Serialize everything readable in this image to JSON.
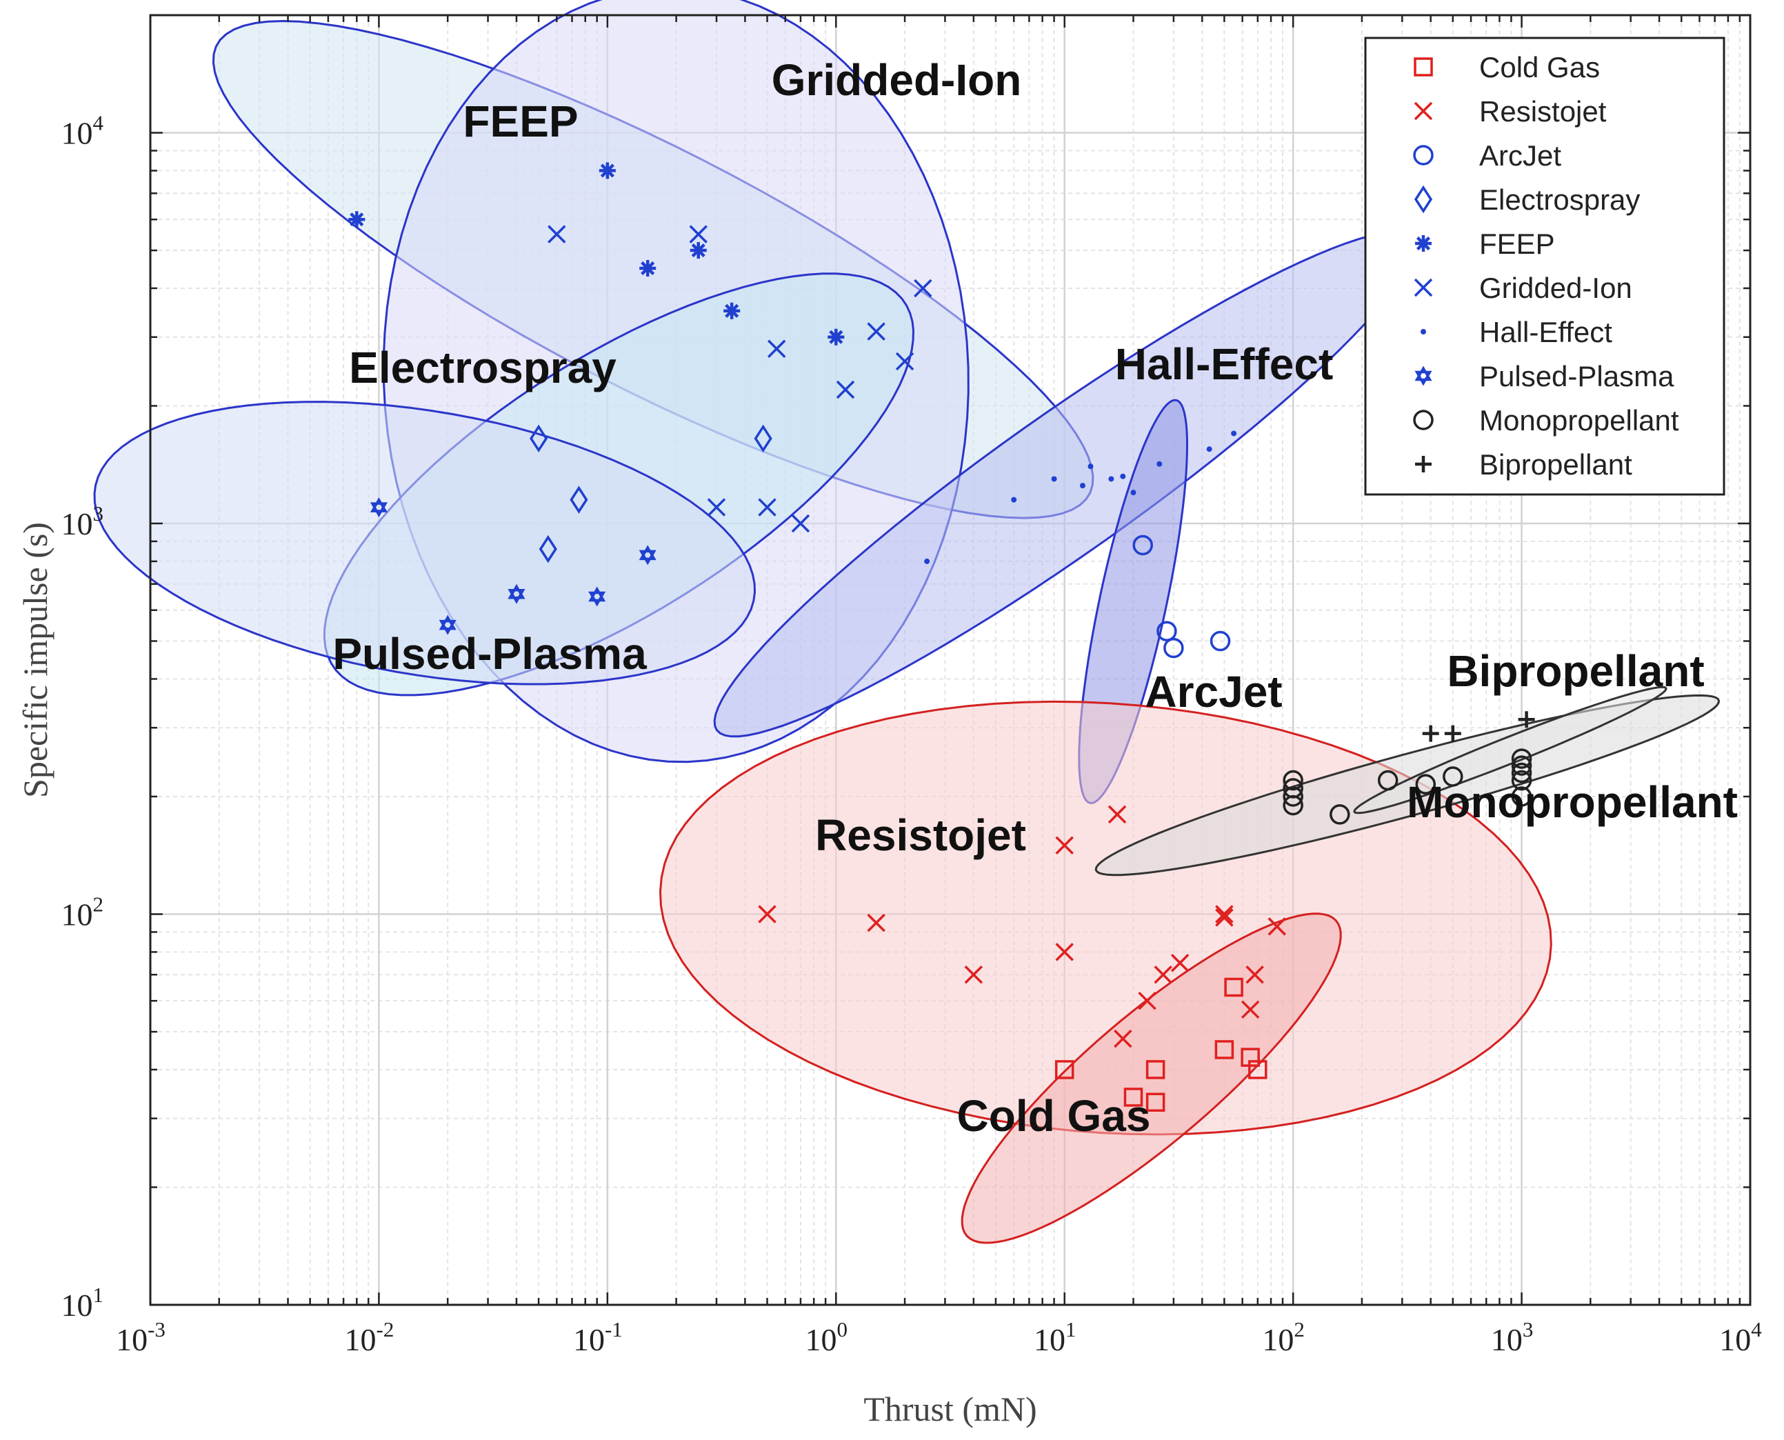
{
  "chart_data": {
    "type": "scatter",
    "title": "",
    "xlabel": "Thrust (mN)",
    "ylabel": "Specific impulse (s)",
    "xscale": "log",
    "yscale": "log",
    "xlim": [
      0.001,
      10000
    ],
    "ylim": [
      10,
      20000
    ],
    "grid": true,
    "legend_position": "top-right",
    "x_ticks": [
      {
        "base": "10",
        "exp": "-3",
        "value": 0.001
      },
      {
        "base": "10",
        "exp": "-2",
        "value": 0.01
      },
      {
        "base": "10",
        "exp": "-1",
        "value": 0.1
      },
      {
        "base": "10",
        "exp": "0",
        "value": 1
      },
      {
        "base": "10",
        "exp": "1",
        "value": 10
      },
      {
        "base": "10",
        "exp": "2",
        "value": 100
      },
      {
        "base": "10",
        "exp": "3",
        "value": 1000
      },
      {
        "base": "10",
        "exp": "4",
        "value": 10000
      }
    ],
    "y_ticks": [
      {
        "base": "10",
        "exp": "1",
        "value": 10
      },
      {
        "base": "10",
        "exp": "2",
        "value": 100
      },
      {
        "base": "10",
        "exp": "3",
        "value": 1000
      },
      {
        "base": "10",
        "exp": "4",
        "value": 10000
      }
    ],
    "series": [
      {
        "name": "Cold Gas",
        "marker": "square",
        "color": "#e02020",
        "points": [
          [
            10,
            40
          ],
          [
            20,
            34
          ],
          [
            25,
            33
          ],
          [
            25,
            40
          ],
          [
            50,
            45
          ],
          [
            55,
            65
          ],
          [
            65,
            43
          ],
          [
            70,
            40
          ]
        ]
      },
      {
        "name": "Resistojet",
        "marker": "x",
        "color": "#e02020",
        "points": [
          [
            0.5,
            100
          ],
          [
            1.5,
            95
          ],
          [
            4,
            70
          ],
          [
            10,
            150
          ],
          [
            10,
            80
          ],
          [
            17,
            180
          ],
          [
            18,
            48
          ],
          [
            23,
            60
          ],
          [
            27,
            70
          ],
          [
            32,
            75
          ],
          [
            50,
            100
          ],
          [
            50,
            98
          ],
          [
            65,
            57
          ],
          [
            68,
            70
          ],
          [
            85,
            93
          ]
        ]
      },
      {
        "name": "ArcJet",
        "marker": "circle",
        "color": "#2040d0",
        "points": [
          [
            22,
            880
          ],
          [
            28,
            530
          ],
          [
            30,
            480
          ],
          [
            48,
            500
          ]
        ]
      },
      {
        "name": "Electrospray",
        "marker": "diamond",
        "color": "#2040d0",
        "points": [
          [
            0.05,
            1650
          ],
          [
            0.055,
            860
          ],
          [
            0.075,
            1150
          ],
          [
            0.48,
            1650
          ]
        ]
      },
      {
        "name": "FEEP",
        "marker": "asterisk",
        "color": "#2040d0",
        "points": [
          [
            0.008,
            6000
          ],
          [
            0.1,
            8000
          ],
          [
            0.15,
            4500
          ],
          [
            0.25,
            5000
          ],
          [
            0.35,
            3500
          ],
          [
            1,
            3000
          ]
        ]
      },
      {
        "name": "Gridded-Ion",
        "marker": "x",
        "color": "#2040d0",
        "points": [
          [
            0.06,
            5500
          ],
          [
            0.25,
            5500
          ],
          [
            0.3,
            1100
          ],
          [
            0.5,
            1100
          ],
          [
            0.55,
            2800
          ],
          [
            0.7,
            1000
          ],
          [
            1.1,
            2200
          ],
          [
            1.5,
            3100
          ],
          [
            2,
            2600
          ],
          [
            2.4,
            4000
          ]
        ]
      },
      {
        "name": "Hall-Effect",
        "marker": "dot",
        "color": "#2040d0",
        "points": [
          [
            2.5,
            800
          ],
          [
            6,
            1150
          ],
          [
            9,
            1300
          ],
          [
            12,
            1250
          ],
          [
            13,
            1400
          ],
          [
            16,
            1300
          ],
          [
            18,
            1320
          ],
          [
            20,
            1200
          ],
          [
            26,
            1420
          ],
          [
            43,
            1550
          ],
          [
            55,
            1700
          ]
        ]
      },
      {
        "name": "Pulsed-Plasma",
        "marker": "hexagram",
        "color": "#2040d0",
        "points": [
          [
            0.01,
            1100
          ],
          [
            0.02,
            550
          ],
          [
            0.04,
            660
          ],
          [
            0.09,
            650
          ],
          [
            0.15,
            830
          ]
        ]
      },
      {
        "name": "Monopropellant",
        "marker": "circle",
        "color": "#222222",
        "points": [
          [
            100,
            190
          ],
          [
            100,
            200
          ],
          [
            100,
            210
          ],
          [
            100,
            220
          ],
          [
            160,
            180
          ],
          [
            260,
            220
          ],
          [
            380,
            215
          ],
          [
            500,
            225
          ],
          [
            1000,
            200
          ],
          [
            1000,
            220
          ],
          [
            1000,
            230
          ],
          [
            1000,
            240
          ],
          [
            1000,
            250
          ]
        ]
      },
      {
        "name": "Bipropellant",
        "marker": "plus",
        "color": "#222222",
        "points": [
          [
            400,
            290
          ],
          [
            500,
            290
          ],
          [
            1050,
            315
          ]
        ]
      }
    ],
    "regions": [
      {
        "name": "FEEP",
        "label": "FEEP",
        "fill": "#cfe6f0",
        "stroke": "#2b35c9"
      },
      {
        "name": "Gridded-Ion",
        "label": "Gridded-Ion",
        "fill": "#d8d8f8",
        "stroke": "#2b35c9"
      },
      {
        "name": "Electrospray",
        "label": "Electrospray",
        "fill": "#c6e6f2",
        "stroke": "#2b35c9"
      },
      {
        "name": "Pulsed-Plasma",
        "label": "Pulsed-Plasma",
        "fill": "#d4ddf6",
        "stroke": "#2b35c9"
      },
      {
        "name": "Hall-Effect",
        "label": "Hall-Effect",
        "fill": "#b8bff0",
        "stroke": "#2b35c9"
      },
      {
        "name": "ArcJet",
        "label": "ArcJet",
        "fill": "#8f98e6",
        "stroke": "#2b35c9"
      },
      {
        "name": "Resistojet",
        "label": "Resistojet",
        "fill": "#f8cccc",
        "stroke": "#d42020"
      },
      {
        "name": "Cold Gas",
        "label": "Cold Gas",
        "fill": "#f4b0b0",
        "stroke": "#d42020"
      },
      {
        "name": "Monopropellant",
        "label": "Monopropellant",
        "fill": "#dadada",
        "stroke": "#333333"
      },
      {
        "name": "Bipropellant",
        "label": "Bipropellant",
        "fill": "#e6e6e6",
        "stroke": "#333333"
      }
    ]
  }
}
